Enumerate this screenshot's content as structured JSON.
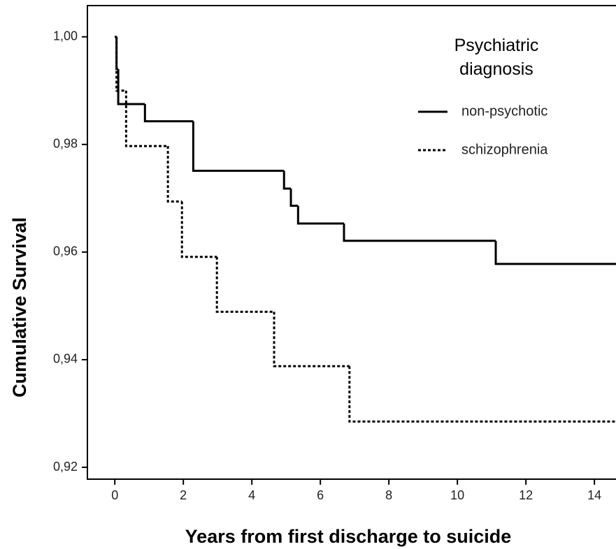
{
  "chart_data": {
    "type": "step",
    "y_label": "Cumulative Survival",
    "x_label": "Years from first discharge to suicide",
    "legend_title": "Psychiatric diagnosis",
    "legend": "upper right",
    "xlim": [
      -0.8,
      14.63
    ],
    "ylim": [
      0.9178,
      1.0058
    ],
    "xticks": [
      0,
      2,
      4,
      6,
      8,
      10,
      12,
      14
    ],
    "yticks": [
      {
        "value": 1.0,
        "label": "1,00"
      },
      {
        "value": 0.98,
        "label": "0,98"
      },
      {
        "value": 0.96,
        "label": "0,96"
      },
      {
        "value": 0.94,
        "label": "0,94"
      },
      {
        "value": 0.92,
        "label": "0,92"
      }
    ],
    "series": [
      {
        "name": "non-psychotic",
        "color": "#000000",
        "dash": "solid",
        "x": [
          0,
          0.05,
          0.1,
          0.88,
          2.29,
          4.94,
          5.14,
          5.35,
          6.69,
          11.12,
          14.63
        ],
        "values": [
          1.0,
          0.994,
          0.9875,
          0.9843,
          0.9751,
          0.9718,
          0.9686,
          0.9653,
          0.9621,
          0.9578,
          0.9578
        ]
      },
      {
        "name": "schizophrenia",
        "color": "#000000",
        "dash": "dotted",
        "x": [
          0,
          0.05,
          0.33,
          1.55,
          1.96,
          2.98,
          4.65,
          6.85,
          14.63
        ],
        "values": [
          1.0,
          0.99,
          0.9797,
          0.9694,
          0.9591,
          0.9489,
          0.9388,
          0.9285,
          0.9285
        ]
      }
    ]
  }
}
